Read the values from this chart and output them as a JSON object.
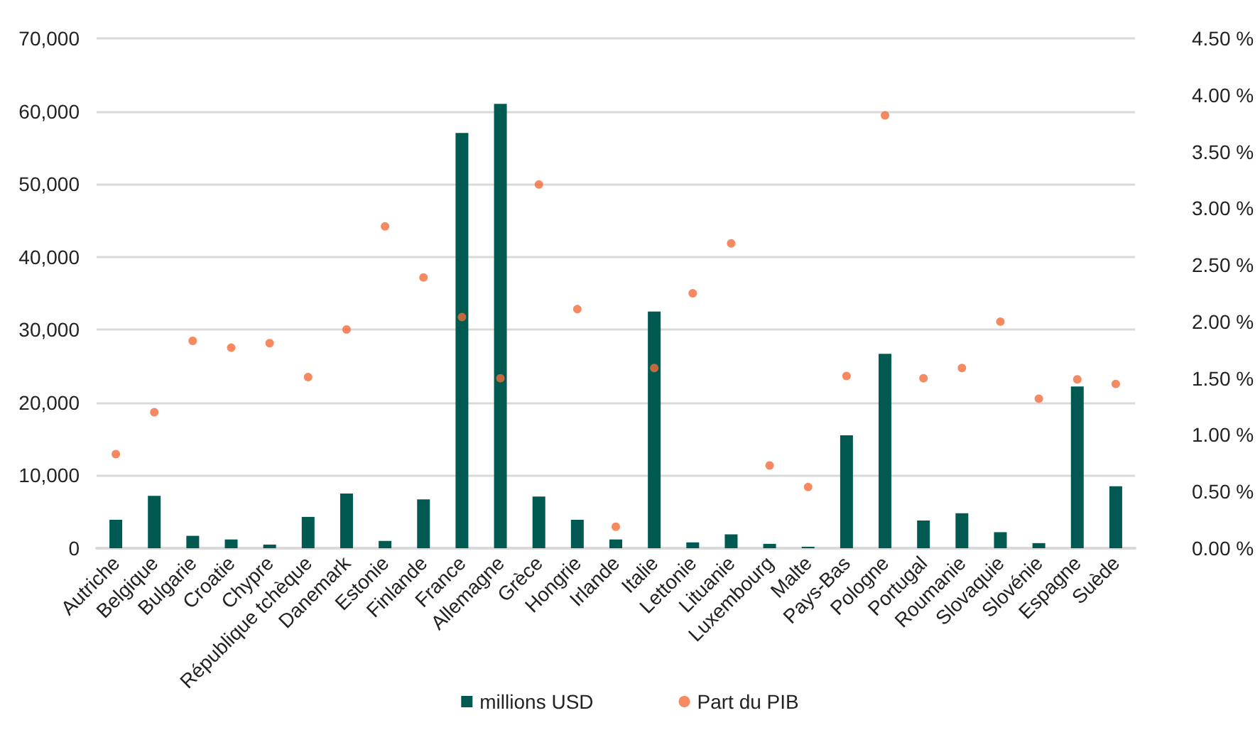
{
  "chart_data": {
    "type": "bar",
    "categories": [
      "Autriche",
      "Belgique",
      "Bulgarie",
      "Croatie",
      "Chypre",
      "République tchèque",
      "Danemark",
      "Estonie",
      "Finlande",
      "France",
      "Allemagne",
      "Grèce",
      "Hongrie",
      "Irlande",
      "Italie",
      "Lettonie",
      "Lituanie",
      "Luxembourg",
      "Malte",
      "Pays-Bas",
      "Pologne",
      "Portugal",
      "Roumanie",
      "Slovaquie",
      "Slovénie",
      "Espagne",
      "Suède"
    ],
    "series": [
      {
        "name": "millions USD",
        "color": "#005a52",
        "values": [
          3900,
          7200,
          1700,
          1200,
          500,
          4300,
          7500,
          1000,
          6700,
          57000,
          61000,
          7100,
          3900,
          1200,
          32500,
          800,
          1900,
          600,
          200,
          15500,
          26700,
          3800,
          4800,
          2200,
          700,
          22200,
          8500
        ]
      },
      {
        "name": "Part du PIB",
        "type": "scatter",
        "axis": "y2",
        "color": "#f26b3a",
        "marker": "circle",
        "values": [
          0.83,
          1.2,
          1.83,
          1.77,
          1.81,
          1.51,
          1.93,
          2.84,
          2.39,
          2.04,
          1.5,
          3.21,
          2.11,
          0.19,
          1.59,
          2.25,
          2.69,
          0.73,
          0.54,
          1.52,
          3.82,
          1.5,
          1.59,
          2.0,
          1.32,
          1.49,
          1.45
        ]
      }
    ],
    "ylim": [
      0,
      70000
    ],
    "yticks": [
      {
        "value": 0,
        "label": "0"
      },
      {
        "value": 10000,
        "label": "10,000"
      },
      {
        "value": 20000,
        "label": "20,000"
      },
      {
        "value": 30000,
        "label": "30,000"
      },
      {
        "value": 40000,
        "label": "40,000"
      },
      {
        "value": 50000,
        "label": "50,000"
      },
      {
        "value": 60000,
        "label": "60,000"
      },
      {
        "value": 70000,
        "label": "70,000"
      }
    ],
    "y2lim": [
      0,
      4.5
    ],
    "y2ticks": [
      {
        "value": 0,
        "label": "0.00 %"
      },
      {
        "value": 0.5,
        "label": "0.50 %"
      },
      {
        "value": 1,
        "label": "1.00 %"
      },
      {
        "value": 1.5,
        "label": "1.50 %"
      },
      {
        "value": 2,
        "label": "2.00 %"
      },
      {
        "value": 2.5,
        "label": "2.50 %"
      },
      {
        "value": 3,
        "label": "3.00 %"
      },
      {
        "value": 3.5,
        "label": "3.50 %"
      },
      {
        "value": 4,
        "label": "4.00 %"
      },
      {
        "value": 4.5,
        "label": "4.50 %"
      }
    ],
    "grid": "y",
    "legend": "bottom"
  }
}
